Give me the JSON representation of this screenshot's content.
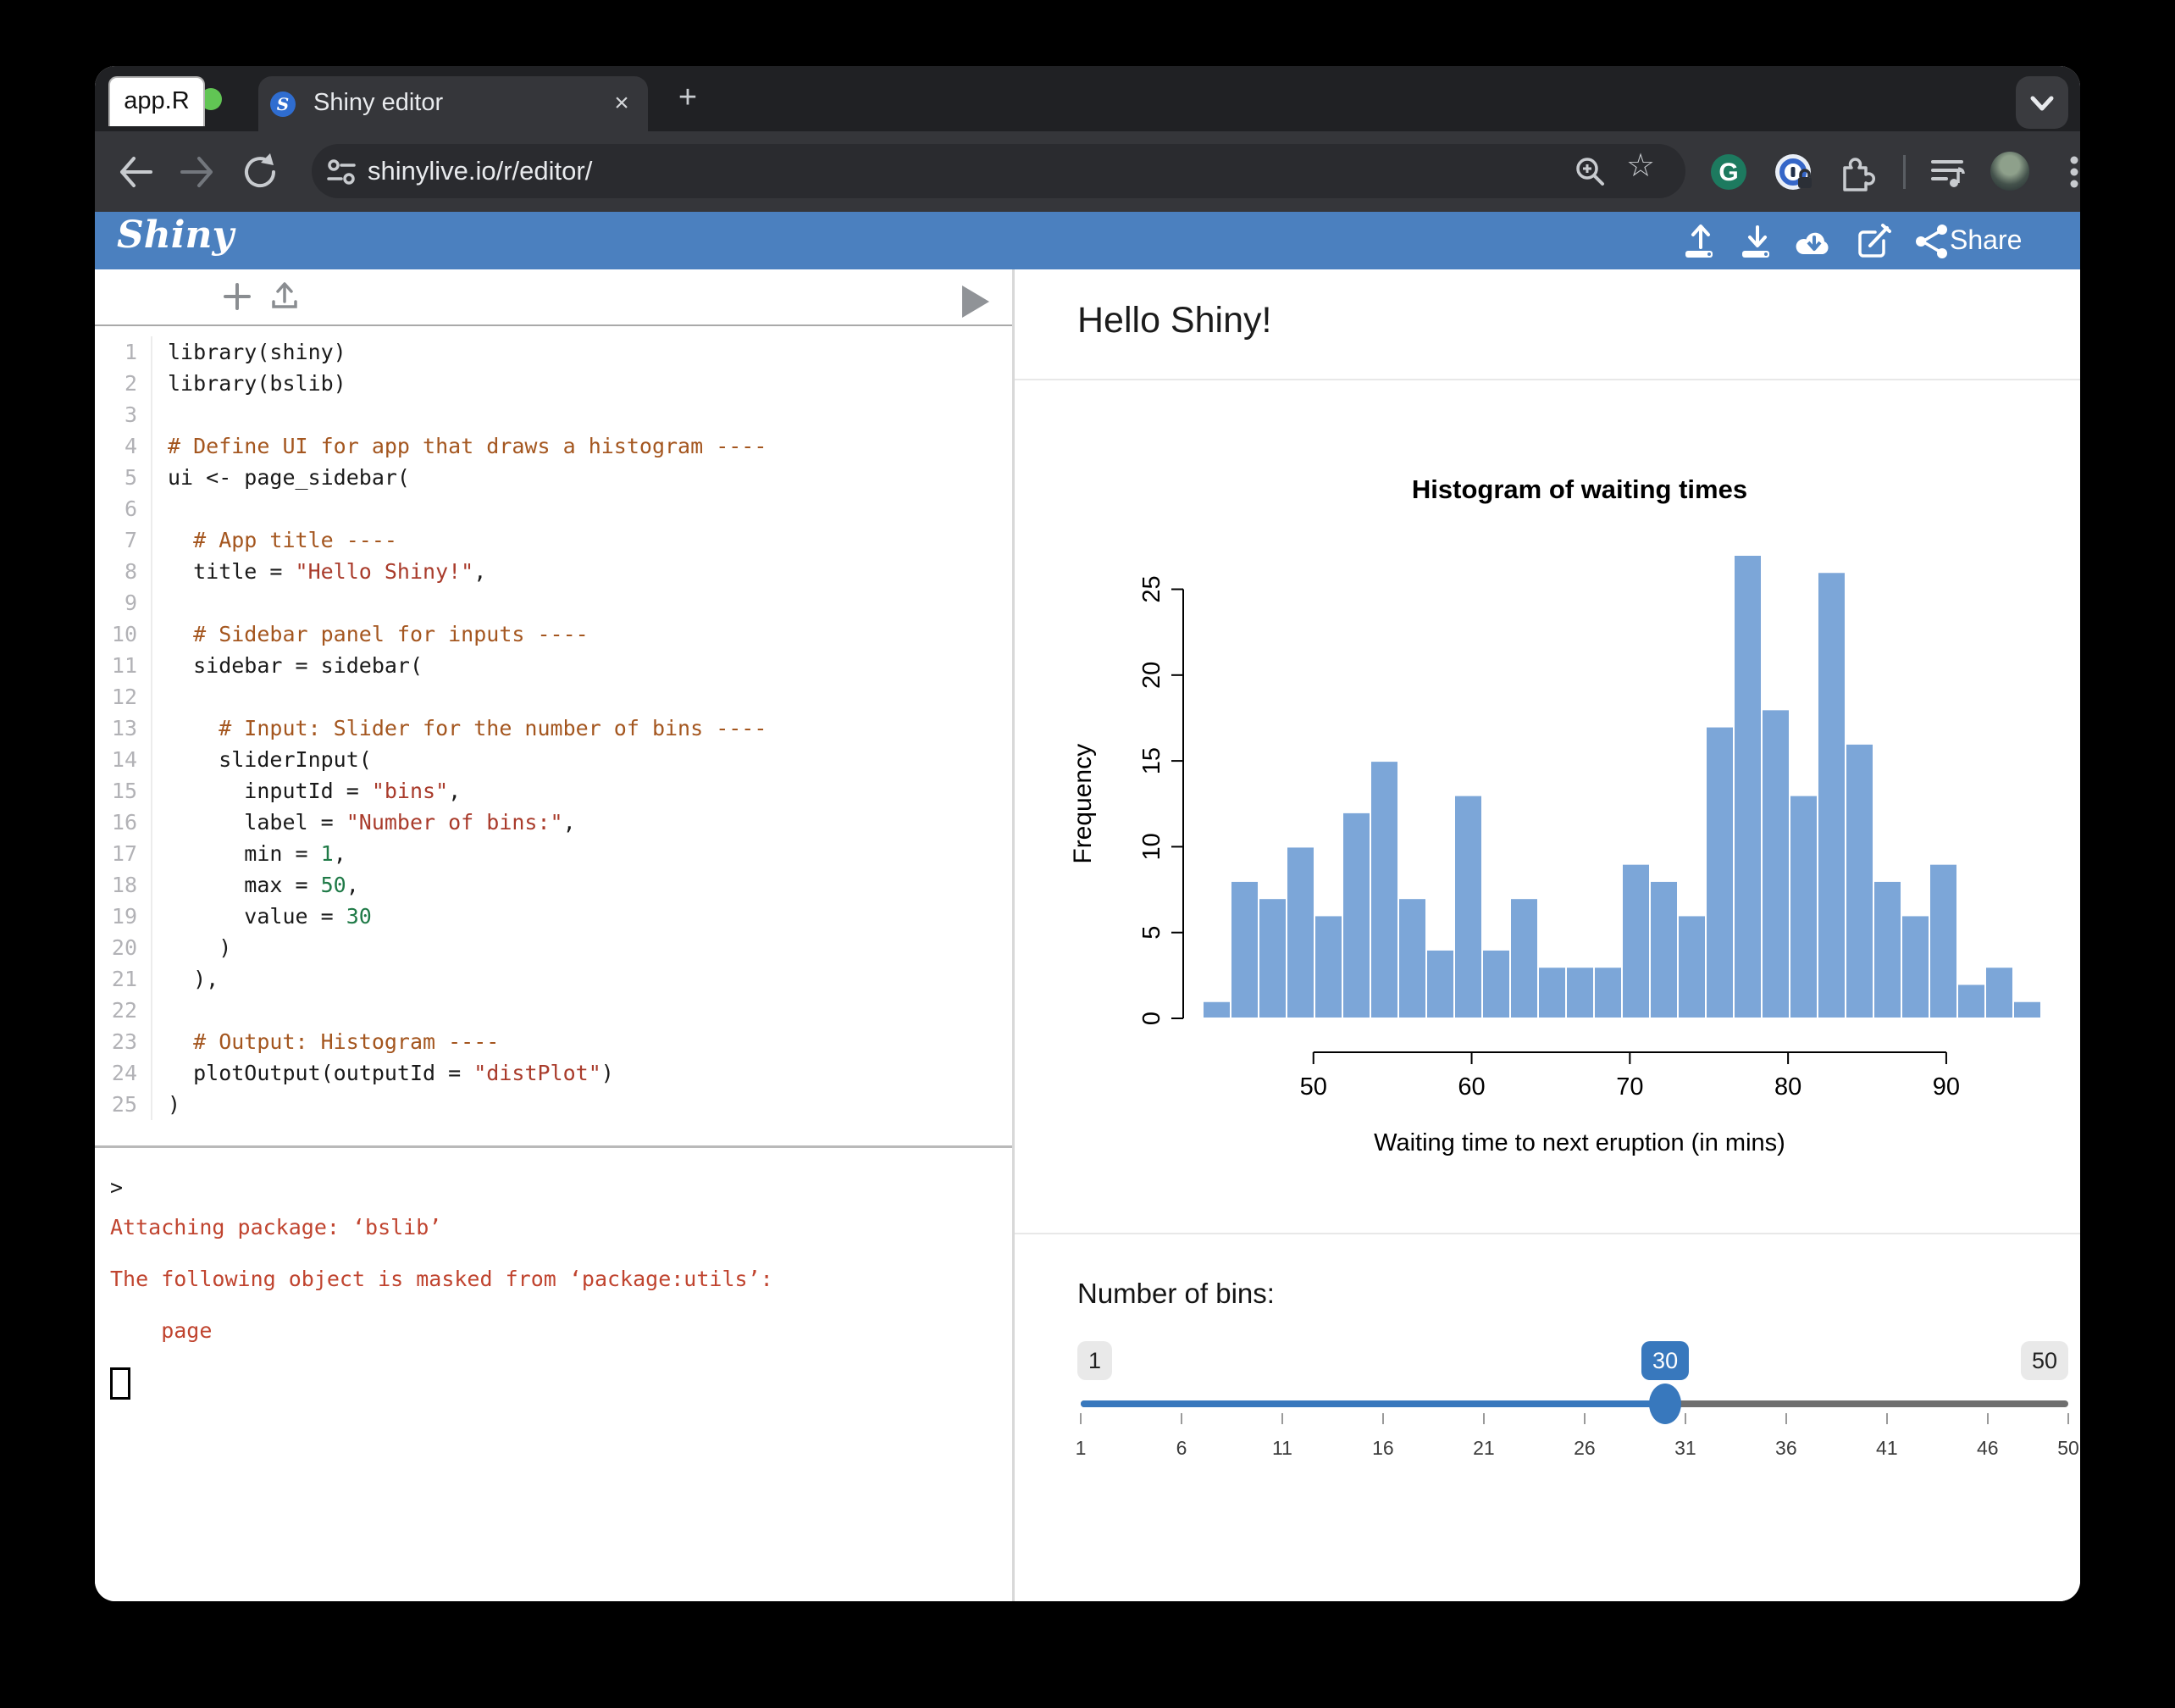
{
  "browser": {
    "tab_title": "Shiny editor",
    "url": "shinylive.io/r/editor/",
    "favicon_letter": "S"
  },
  "shiny_header": {
    "logo": "Shiny",
    "share_label": "Share"
  },
  "editor": {
    "tab_label": "app.R",
    "lines": [
      {
        "n": "1",
        "segs": [
          [
            "p",
            "library(shiny)"
          ]
        ]
      },
      {
        "n": "2",
        "segs": [
          [
            "p",
            "library(bslib)"
          ]
        ]
      },
      {
        "n": "3",
        "segs": []
      },
      {
        "n": "4",
        "segs": [
          [
            "c",
            "# Define UI for app that draws a histogram ----"
          ]
        ]
      },
      {
        "n": "5",
        "segs": [
          [
            "p",
            "ui <- page_sidebar("
          ]
        ]
      },
      {
        "n": "6",
        "segs": []
      },
      {
        "n": "7",
        "segs": [
          [
            "c",
            "  # App title ----"
          ]
        ]
      },
      {
        "n": "8",
        "segs": [
          [
            "p",
            "  title = "
          ],
          [
            "s",
            "\"Hello Shiny!\""
          ],
          [
            "p",
            ","
          ]
        ]
      },
      {
        "n": "9",
        "segs": []
      },
      {
        "n": "10",
        "segs": [
          [
            "c",
            "  # Sidebar panel for inputs ----"
          ]
        ]
      },
      {
        "n": "11",
        "segs": [
          [
            "p",
            "  sidebar = sidebar("
          ]
        ]
      },
      {
        "n": "12",
        "segs": []
      },
      {
        "n": "13",
        "segs": [
          [
            "c",
            "    # Input: Slider for the number of bins ----"
          ]
        ]
      },
      {
        "n": "14",
        "segs": [
          [
            "p",
            "    sliderInput("
          ]
        ]
      },
      {
        "n": "15",
        "segs": [
          [
            "p",
            "      inputId = "
          ],
          [
            "s",
            "\"bins\""
          ],
          [
            "p",
            ","
          ]
        ]
      },
      {
        "n": "16",
        "segs": [
          [
            "p",
            "      label = "
          ],
          [
            "s",
            "\"Number of bins:\""
          ],
          [
            "p",
            ","
          ]
        ]
      },
      {
        "n": "17",
        "segs": [
          [
            "p",
            "      min = "
          ],
          [
            "num",
            "1"
          ],
          [
            "p",
            ","
          ]
        ]
      },
      {
        "n": "18",
        "segs": [
          [
            "p",
            "      max = "
          ],
          [
            "num",
            "50"
          ],
          [
            "p",
            ","
          ]
        ]
      },
      {
        "n": "19",
        "segs": [
          [
            "p",
            "      value = "
          ],
          [
            "num",
            "30"
          ]
        ]
      },
      {
        "n": "20",
        "segs": [
          [
            "p",
            "    )"
          ]
        ]
      },
      {
        "n": "21",
        "segs": [
          [
            "p",
            "  ),"
          ]
        ]
      },
      {
        "n": "22",
        "segs": []
      },
      {
        "n": "23",
        "segs": [
          [
            "c",
            "  # Output: Histogram ----"
          ]
        ]
      },
      {
        "n": "24",
        "segs": [
          [
            "p",
            "  plotOutput(outputId = "
          ],
          [
            "s",
            "\"distPlot\""
          ],
          [
            "p",
            ")"
          ]
        ]
      },
      {
        "n": "25",
        "segs": [
          [
            "p",
            ")"
          ]
        ]
      }
    ]
  },
  "console": {
    "lines": [
      {
        "text": ">",
        "cls": "plain"
      },
      {
        "text": "Attaching package: ‘bslib’",
        "cls": "error"
      },
      {
        "text": "The following object is masked from ‘package:utils’:",
        "cls": "error gap"
      },
      {
        "text": "    page",
        "cls": "error gap"
      },
      {
        "text": "",
        "cls": "cursorline gap"
      }
    ]
  },
  "app": {
    "title": "Hello Shiny!",
    "bins_label": "Number of bins:"
  },
  "slider": {
    "min": 1,
    "max": 50,
    "value": 30,
    "ticks": [
      1,
      6,
      11,
      16,
      21,
      26,
      31,
      36,
      41,
      46,
      50
    ]
  },
  "chart_data": {
    "type": "bar",
    "title": "Histogram of waiting times",
    "xlabel": "Waiting time to next eruption (in mins)",
    "ylabel": "Frequency",
    "bin_start": 43,
    "bin_end": 96,
    "values": [
      1,
      8,
      7,
      10,
      6,
      12,
      15,
      7,
      4,
      13,
      4,
      7,
      3,
      3,
      3,
      9,
      8,
      6,
      17,
      27,
      18,
      13,
      26,
      16,
      8,
      6,
      9,
      2,
      3,
      1
    ],
    "x_ticks": [
      50,
      60,
      70,
      80,
      90
    ],
    "y_ticks": [
      0,
      5,
      10,
      15,
      20,
      25
    ],
    "ylim": [
      0,
      27
    ],
    "grid": false,
    "legend": "none",
    "bar_color": "#7CA6D8",
    "bar_border": "#ffffff"
  }
}
